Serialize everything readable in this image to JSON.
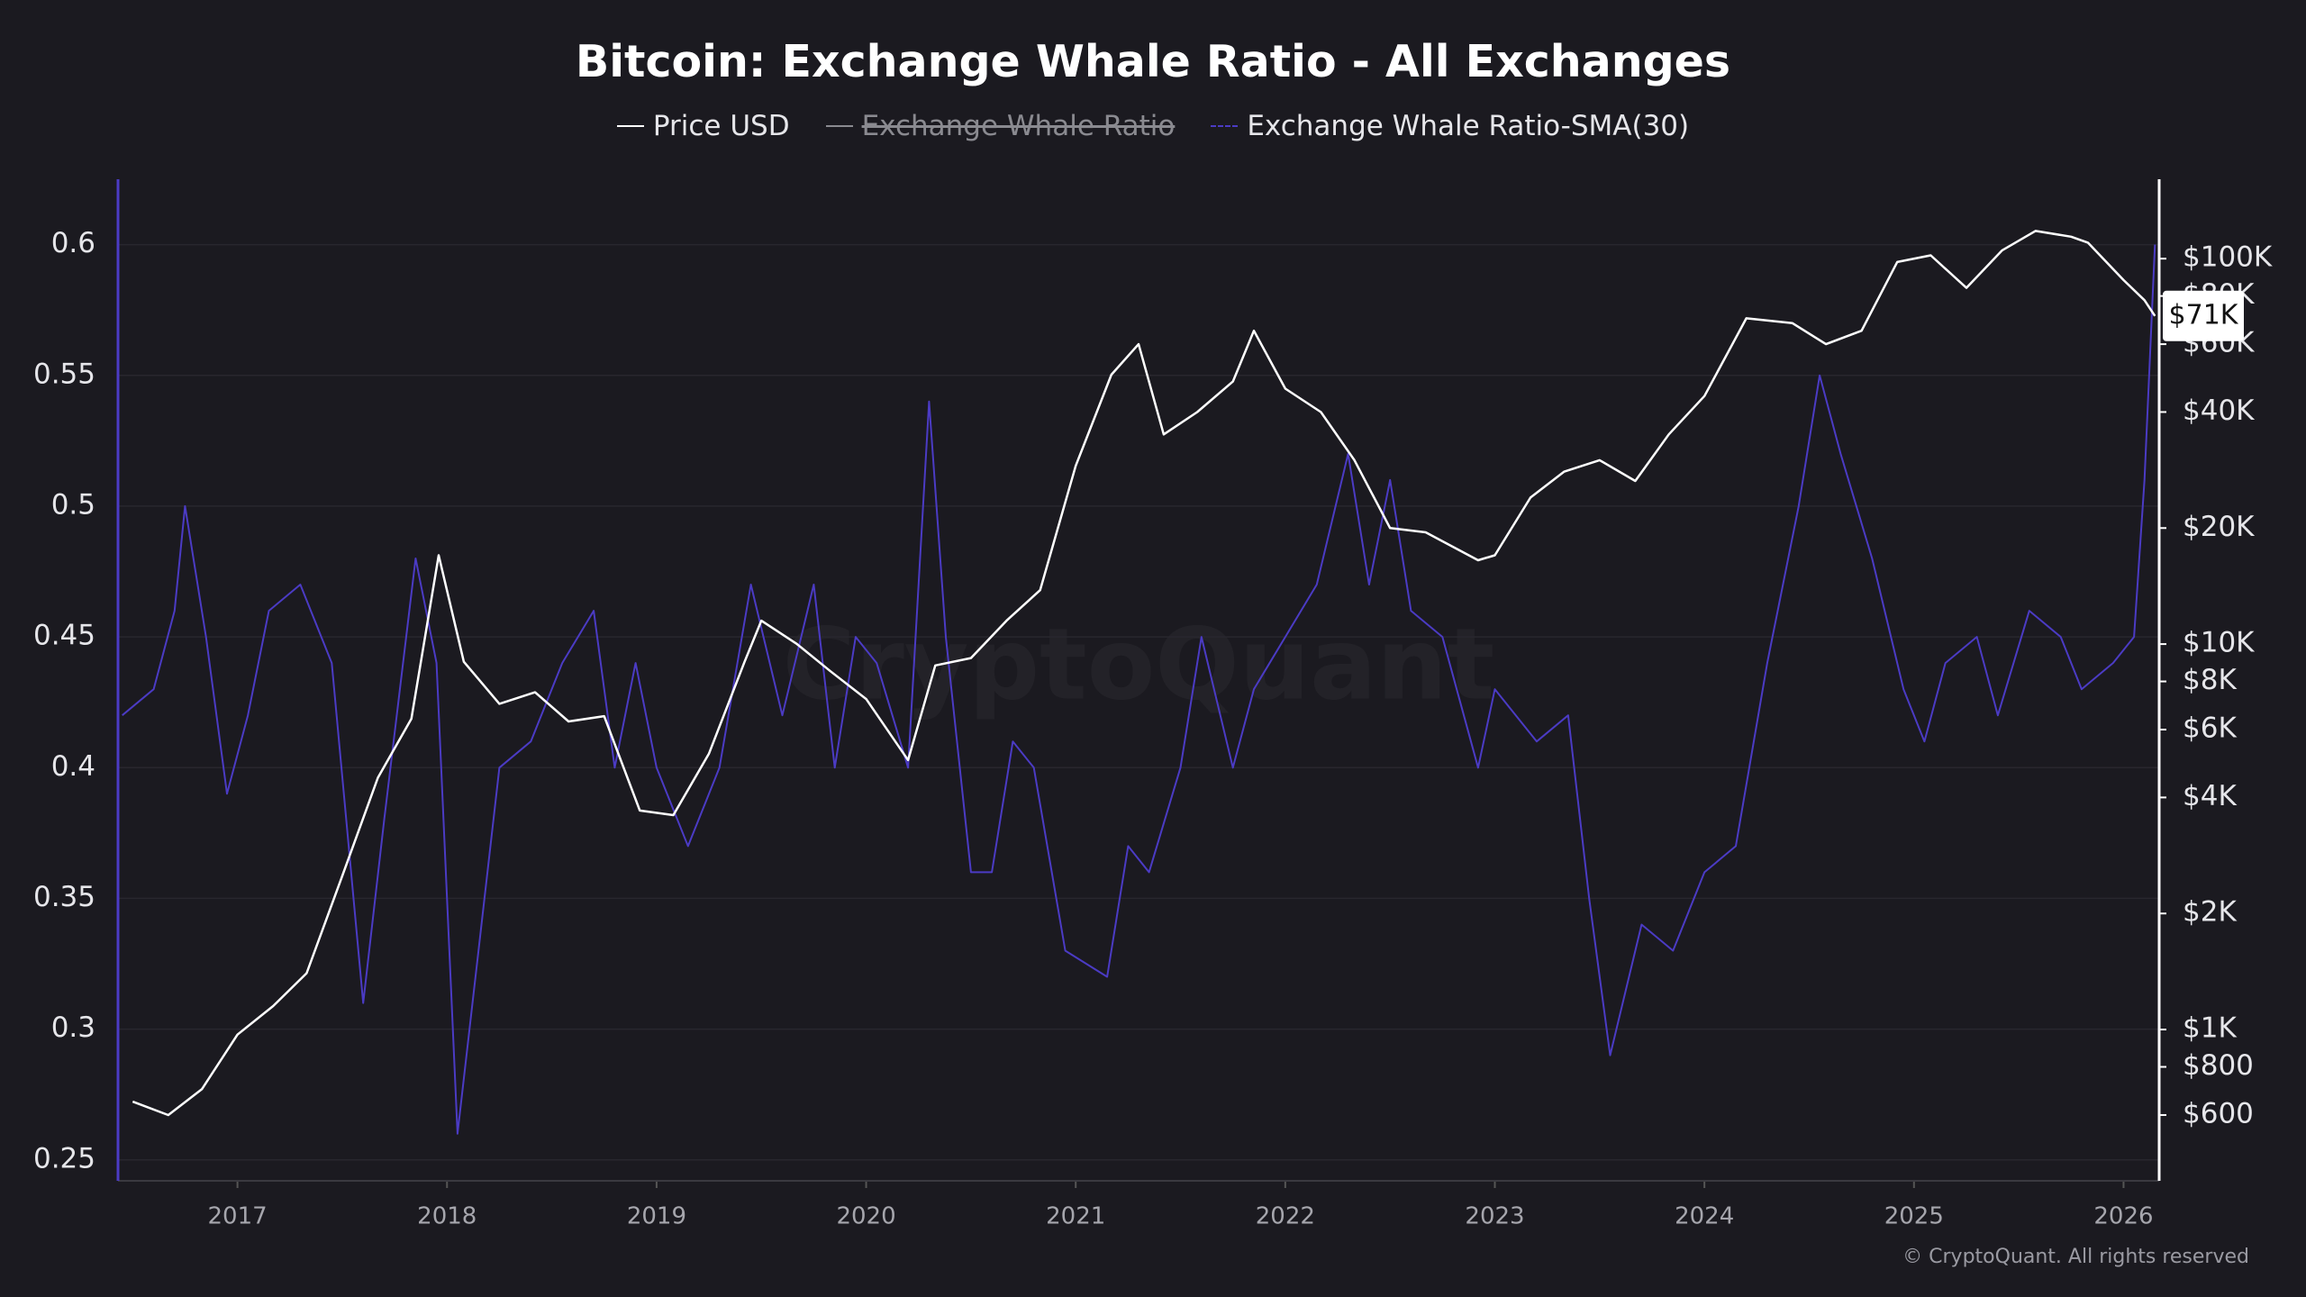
{
  "chart_data": {
    "type": "line",
    "title": "Bitcoin: Exchange Whale Ratio - All Exchanges",
    "watermark": "CryptoQuant",
    "credit": "© CryptoQuant. All rights reserved",
    "xlim": [
      2016.43,
      2026.17
    ],
    "xticks": [
      2017,
      2018,
      2019,
      2020,
      2021,
      2022,
      2023,
      2024,
      2025,
      2026
    ],
    "ylim": [
      0.242,
      0.625
    ],
    "yticks": [
      0.25,
      0.3,
      0.35,
      0.4,
      0.45,
      0.5,
      0.55,
      0.6
    ],
    "y2lim": [
      405,
      160700
    ],
    "y2scale": "log",
    "y2ticks": [
      {
        "value": 600,
        "label": "$600"
      },
      {
        "value": 800,
        "label": "$800"
      },
      {
        "value": 1000,
        "label": "$1K"
      },
      {
        "value": 2000,
        "label": "$2K"
      },
      {
        "value": 4000,
        "label": "$4K"
      },
      {
        "value": 6000,
        "label": "$6K"
      },
      {
        "value": 8000,
        "label": "$8K"
      },
      {
        "value": 10000,
        "label": "$10K"
      },
      {
        "value": 20000,
        "label": "$20K"
      },
      {
        "value": 40000,
        "label": "$40K"
      },
      {
        "value": 60000,
        "label": "$60K"
      },
      {
        "value": 80000,
        "label": "$80K"
      },
      {
        "value": 100000,
        "label": "$100K"
      }
    ],
    "grid": true,
    "current_price": {
      "value": 71000,
      "label": "$71K"
    },
    "series": [
      {
        "name": "Price USD",
        "color": "#ffffff",
        "axis": "y2",
        "visible": true,
        "x": [
          2016.5,
          2016.67,
          2016.83,
          2017.0,
          2017.17,
          2017.33,
          2017.5,
          2017.67,
          2017.83,
          2017.96,
          2018.08,
          2018.25,
          2018.42,
          2018.58,
          2018.75,
          2018.92,
          2019.08,
          2019.25,
          2019.42,
          2019.5,
          2019.67,
          2019.83,
          2020.0,
          2020.2,
          2020.33,
          2020.5,
          2020.67,
          2020.83,
          2021.0,
          2021.17,
          2021.3,
          2021.42,
          2021.58,
          2021.75,
          2021.85,
          2022.0,
          2022.17,
          2022.33,
          2022.5,
          2022.67,
          2022.92,
          2023.0,
          2023.17,
          2023.33,
          2023.5,
          2023.67,
          2023.83,
          2024.0,
          2024.2,
          2024.42,
          2024.58,
          2024.75,
          2024.92,
          2025.08,
          2025.25,
          2025.42,
          2025.58,
          2025.75,
          2025.83,
          2026.0,
          2026.1,
          2026.15
        ],
        "values": [
          650,
          600,
          700,
          970,
          1150,
          1400,
          2500,
          4500,
          6400,
          17000,
          9000,
          7000,
          7500,
          6300,
          6500,
          3700,
          3600,
          5200,
          9000,
          11500,
          10000,
          8500,
          7200,
          5000,
          8800,
          9200,
          11500,
          13800,
          29000,
          50000,
          60000,
          35000,
          40000,
          48000,
          65000,
          46000,
          40000,
          30000,
          20000,
          19500,
          16500,
          17000,
          24000,
          28000,
          30000,
          26500,
          35000,
          44000,
          70000,
          68000,
          60000,
          65000,
          98000,
          102000,
          84000,
          105000,
          118000,
          114000,
          110000,
          88000,
          78000,
          71000
        ]
      },
      {
        "name": "Exchange Whale Ratio",
        "color": "#aaaaaa",
        "visible": false
      },
      {
        "name": "Exchange Whale Ratio-SMA(30)",
        "color": "#4b3bc4",
        "axis": "y",
        "visible": true,
        "x": [
          2016.45,
          2016.6,
          2016.7,
          2016.75,
          2016.85,
          2016.95,
          2017.05,
          2017.15,
          2017.3,
          2017.45,
          2017.6,
          2017.7,
          2017.85,
          2017.95,
          2018.05,
          2018.15,
          2018.25,
          2018.4,
          2018.55,
          2018.7,
          2018.8,
          2018.9,
          2019.0,
          2019.15,
          2019.3,
          2019.45,
          2019.6,
          2019.75,
          2019.85,
          2019.95,
          2020.05,
          2020.2,
          2020.3,
          2020.38,
          2020.5,
          2020.6,
          2020.7,
          2020.8,
          2020.95,
          2021.15,
          2021.25,
          2021.35,
          2021.5,
          2021.6,
          2021.75,
          2021.85,
          2022.0,
          2022.15,
          2022.3,
          2022.4,
          2022.5,
          2022.6,
          2022.75,
          2022.92,
          2023.0,
          2023.2,
          2023.35,
          2023.45,
          2023.55,
          2023.7,
          2023.85,
          2024.0,
          2024.15,
          2024.3,
          2024.45,
          2024.55,
          2024.65,
          2024.8,
          2024.95,
          2025.05,
          2025.15,
          2025.3,
          2025.4,
          2025.55,
          2025.7,
          2025.8,
          2025.95,
          2026.05,
          2026.1,
          2026.15
        ],
        "values": [
          0.42,
          0.43,
          0.46,
          0.5,
          0.45,
          0.39,
          0.42,
          0.46,
          0.47,
          0.44,
          0.31,
          0.38,
          0.48,
          0.44,
          0.26,
          0.33,
          0.4,
          0.41,
          0.44,
          0.46,
          0.4,
          0.44,
          0.4,
          0.37,
          0.4,
          0.47,
          0.42,
          0.47,
          0.4,
          0.45,
          0.44,
          0.4,
          0.54,
          0.45,
          0.36,
          0.36,
          0.41,
          0.4,
          0.33,
          0.32,
          0.37,
          0.36,
          0.4,
          0.45,
          0.4,
          0.43,
          0.45,
          0.47,
          0.52,
          0.47,
          0.51,
          0.46,
          0.45,
          0.4,
          0.43,
          0.41,
          0.42,
          0.35,
          0.29,
          0.34,
          0.33,
          0.36,
          0.37,
          0.44,
          0.5,
          0.55,
          0.52,
          0.48,
          0.43,
          0.41,
          0.44,
          0.45,
          0.42,
          0.46,
          0.45,
          0.43,
          0.44,
          0.45,
          0.51,
          0.6
        ]
      }
    ]
  }
}
